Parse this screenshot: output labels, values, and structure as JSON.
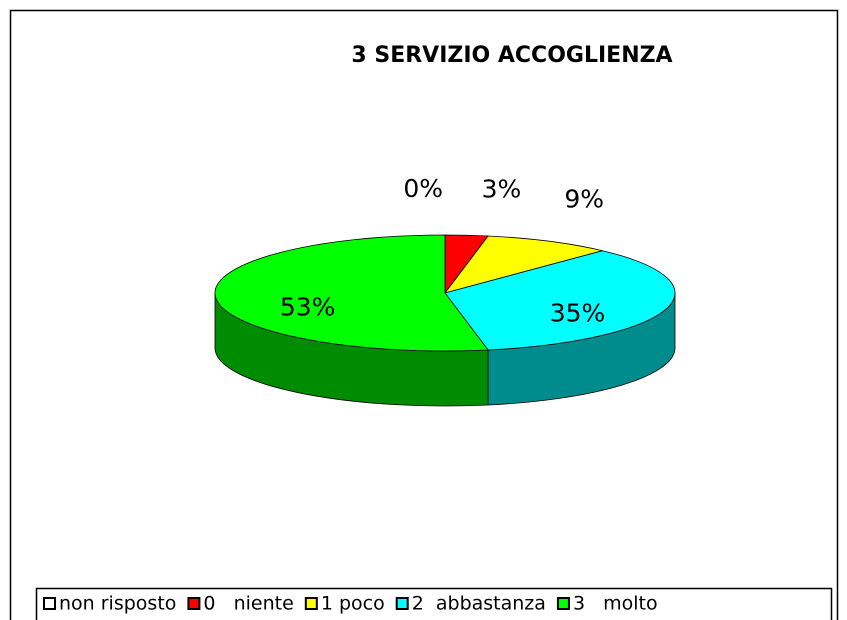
{
  "chart_data": {
    "type": "pie",
    "title": "3   SERVIZIO  ACCOGLIENZA",
    "categories": [
      "non risposto",
      "0   niente",
      "1 poco",
      "2  abbastanza",
      "3   molto"
    ],
    "values": [
      0,
      3,
      9,
      35,
      53
    ],
    "value_labels": [
      "0%",
      "3%",
      "9%",
      "35%",
      "53%"
    ],
    "colors": [
      "#ffffff",
      "#ff0000",
      "#ffff00",
      "#00ffff",
      "#00ff00"
    ],
    "legend": "bottom"
  }
}
